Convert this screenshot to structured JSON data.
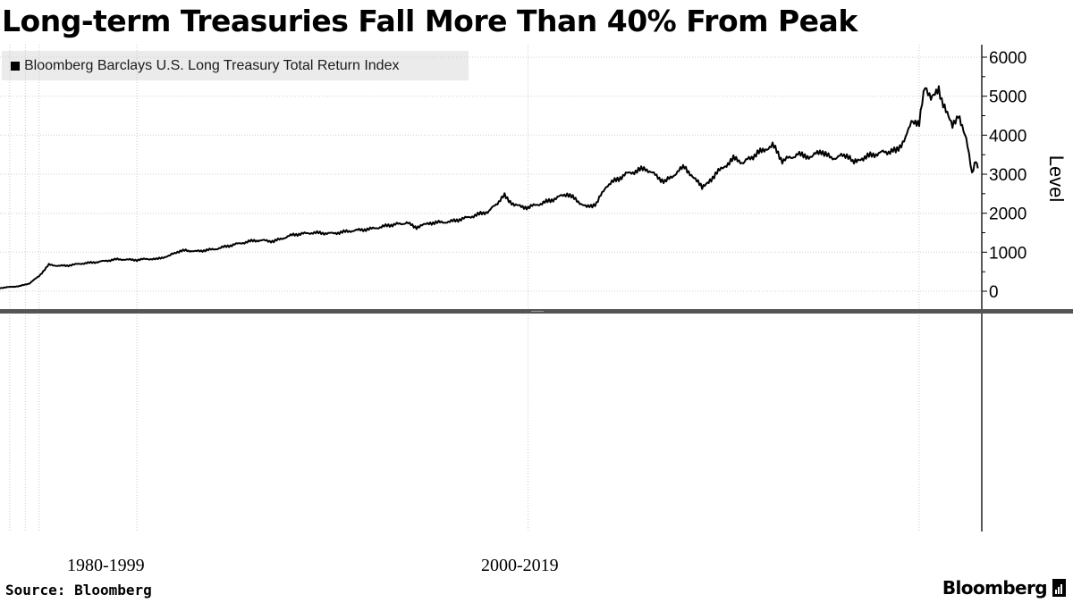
{
  "title": "Long-term Treasuries Fall More Than 40% From Peak",
  "source": "Source: Bloomberg",
  "brand": "Bloomberg",
  "brand_icon": "bloomberg-terminal-icon",
  "eras": [
    "1980-1999",
    "2000-2019"
  ],
  "chart_data": {
    "type": "line",
    "ylabel": "Level",
    "ylim": [
      -250,
      6300
    ],
    "y_ticks": [
      0,
      1000,
      2000,
      3000,
      4000,
      5000,
      6000
    ],
    "y_tick_labels": [
      "0",
      "1000",
      "2000",
      "3000",
      "4000",
      "5000",
      "6000"
    ],
    "x_range": [
      1973,
      2023.2
    ],
    "x_gridlines": [
      1973.5,
      1974.3,
      1975,
      1980,
      2000,
      2020
    ],
    "grid": true,
    "legend_position": "top-left",
    "line_color": "#000000",
    "series": [
      {
        "name": "Bloomberg Barclays U.S. Long Treasury Total Return Index",
        "x": [
          1973.0,
          1973.5,
          1974.0,
          1974.5,
          1975.0,
          1975.5,
          1976.0,
          1976.5,
          1977.0,
          1978.0,
          1979.0,
          1980.0,
          1980.5,
          1981.0,
          1981.7,
          1982.0,
          1982.5,
          1983.0,
          1984.0,
          1985.0,
          1986.0,
          1986.5,
          1987.0,
          1988.0,
          1989.0,
          1990.0,
          1991.0,
          1992.0,
          1993.0,
          1993.8,
          1994.3,
          1995.0,
          1996.0,
          1997.0,
          1998.0,
          1998.8,
          1999.3,
          2000.0,
          2001.0,
          2002.0,
          2003.0,
          2003.5,
          2004.0,
          2005.0,
          2006.0,
          2007.0,
          2008.0,
          2008.9,
          2009.3,
          2009.8,
          2010.5,
          2011.0,
          2011.8,
          2012.5,
          2013.0,
          2013.8,
          2014.5,
          2015.0,
          2015.5,
          2016.3,
          2016.6,
          2017.0,
          2018.0,
          2018.8,
          2019.3,
          2019.6,
          2020.0,
          2020.3,
          2020.6,
          2021.0,
          2021.3,
          2021.7,
          2022.0,
          2022.4,
          2022.7,
          2022.9,
          2023.0
        ],
        "y": [
          80,
          110,
          130,
          200,
          390,
          680,
          650,
          660,
          700,
          750,
          820,
          800,
          830,
          820,
          920,
          1000,
          1050,
          1020,
          1080,
          1200,
          1300,
          1300,
          1280,
          1450,
          1500,
          1480,
          1550,
          1600,
          1700,
          1750,
          1640,
          1750,
          1780,
          1900,
          2050,
          2450,
          2200,
          2150,
          2300,
          2500,
          2150,
          2250,
          2700,
          3000,
          3150,
          2800,
          3200,
          2650,
          2850,
          3100,
          3400,
          3300,
          3550,
          3750,
          3350,
          3500,
          3450,
          3600,
          3400,
          3500,
          3300,
          3400,
          3550,
          3600,
          3900,
          4400,
          4300,
          5300,
          4900,
          5150,
          4700,
          4200,
          4550,
          3900,
          3050,
          3400,
          3150
        ]
      }
    ]
  }
}
